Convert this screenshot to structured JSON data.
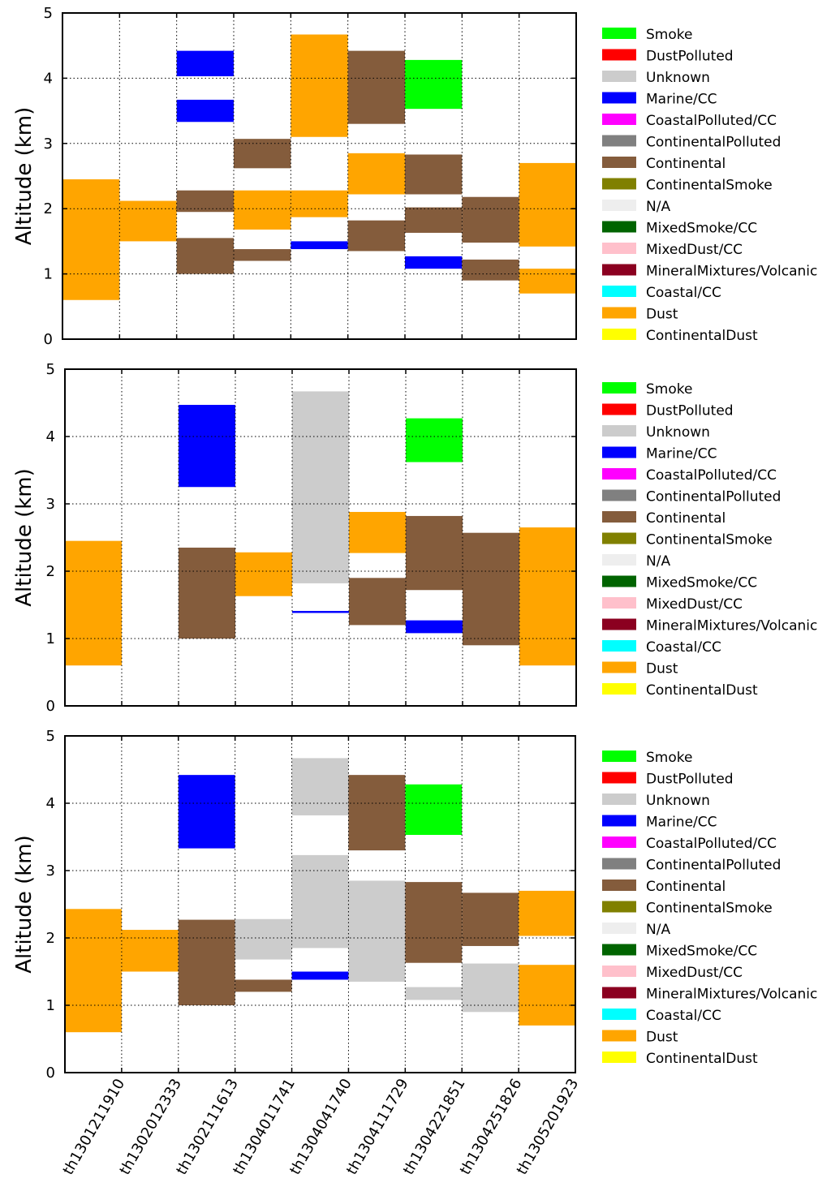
{
  "chart_data": [
    {
      "type": "bar",
      "panel": "top",
      "ylabel": "Altitude (km)",
      "ylim": [
        0,
        5
      ],
      "yticks": [
        "0",
        "1",
        "2",
        "3",
        "4",
        "5"
      ],
      "categories": [
        "th1301211910",
        "th1302012333",
        "th1302111613",
        "th1304011741",
        "th1304041740",
        "th1304111729",
        "th1304221851",
        "th1304251826",
        "th1305201923"
      ],
      "grid": true,
      "legend_position": "right",
      "layers": [
        {
          "category": "th1301211910",
          "type": "Dust",
          "bottom": 0.6,
          "top": 2.45
        },
        {
          "category": "th1302012333",
          "type": "Dust",
          "bottom": 1.5,
          "top": 2.12
        },
        {
          "category": "th1302111613",
          "type": "Continental",
          "bottom": 1.0,
          "top": 1.55
        },
        {
          "category": "th1302111613",
          "type": "Continental",
          "bottom": 1.95,
          "top": 2.28
        },
        {
          "category": "th1302111613",
          "type": "Marine/CC",
          "bottom": 3.33,
          "top": 3.67
        },
        {
          "category": "th1302111613",
          "type": "Marine/CC",
          "bottom": 4.03,
          "top": 4.42
        },
        {
          "category": "th1304011741",
          "type": "Continental",
          "bottom": 1.2,
          "top": 1.38
        },
        {
          "category": "th1304011741",
          "type": "Dust",
          "bottom": 1.68,
          "top": 2.28
        },
        {
          "category": "th1304011741",
          "type": "Continental",
          "bottom": 2.62,
          "top": 3.07
        },
        {
          "category": "th1304041740",
          "type": "Marine/CC",
          "bottom": 1.38,
          "top": 1.5
        },
        {
          "category": "th1304041740",
          "type": "Dust",
          "bottom": 1.87,
          "top": 2.28
        },
        {
          "category": "th1304041740",
          "type": "Dust",
          "bottom": 3.1,
          "top": 4.67
        },
        {
          "category": "th1304111729",
          "type": "Continental",
          "bottom": 1.35,
          "top": 1.82
        },
        {
          "category": "th1304111729",
          "type": "Dust",
          "bottom": 2.22,
          "top": 2.85
        },
        {
          "category": "th1304111729",
          "type": "Continental",
          "bottom": 3.3,
          "top": 4.42
        },
        {
          "category": "th1304221851",
          "type": "Marine/CC",
          "bottom": 1.08,
          "top": 1.27
        },
        {
          "category": "th1304221851",
          "type": "Continental",
          "bottom": 1.63,
          "top": 2.02
        },
        {
          "category": "th1304221851",
          "type": "Continental",
          "bottom": 2.22,
          "top": 2.83
        },
        {
          "category": "th1304221851",
          "type": "Smoke",
          "bottom": 3.53,
          "top": 4.28
        },
        {
          "category": "th1304251826",
          "type": "Continental",
          "bottom": 0.9,
          "top": 1.22
        },
        {
          "category": "th1304251826",
          "type": "Continental",
          "bottom": 1.48,
          "top": 2.18
        },
        {
          "category": "th1305201923",
          "type": "Dust",
          "bottom": 0.7,
          "top": 1.08
        },
        {
          "category": "th1305201923",
          "type": "Dust",
          "bottom": 1.42,
          "top": 2.7
        }
      ]
    },
    {
      "type": "bar",
      "panel": "middle",
      "ylabel": "Altitude (km)",
      "ylim": [
        0,
        5
      ],
      "yticks": [
        "0",
        "1",
        "2",
        "3",
        "4",
        "5"
      ],
      "categories": [
        "th1301211910",
        "th1302012333",
        "th1302111613",
        "th1304011741",
        "th1304041740",
        "th1304111729",
        "th1304221851",
        "th1304251826",
        "th1305201923"
      ],
      "grid": true,
      "legend_position": "right",
      "layers": [
        {
          "category": "th1301211910",
          "type": "Dust",
          "bottom": 0.6,
          "top": 2.45
        },
        {
          "category": "th1302111613",
          "type": "Continental",
          "bottom": 1.0,
          "top": 2.35
        },
        {
          "category": "th1302111613",
          "type": "Marine/CC",
          "bottom": 3.25,
          "top": 4.47
        },
        {
          "category": "th1304011741",
          "type": "Dust",
          "bottom": 1.63,
          "top": 2.28
        },
        {
          "category": "th1304041740",
          "type": "Marine/CC",
          "bottom": 1.38,
          "top": 1.41
        },
        {
          "category": "th1304041740",
          "type": "Unknown",
          "bottom": 1.82,
          "top": 4.67
        },
        {
          "category": "th1304111729",
          "type": "Continental",
          "bottom": 1.2,
          "top": 1.9
        },
        {
          "category": "th1304111729",
          "type": "Dust",
          "bottom": 2.27,
          "top": 2.88
        },
        {
          "category": "th1304221851",
          "type": "Marine/CC",
          "bottom": 1.08,
          "top": 1.27
        },
        {
          "category": "th1304221851",
          "type": "Continental",
          "bottom": 1.72,
          "top": 2.82
        },
        {
          "category": "th1304221851",
          "type": "Smoke",
          "bottom": 3.62,
          "top": 4.27
        },
        {
          "category": "th1304251826",
          "type": "Continental",
          "bottom": 0.9,
          "top": 2.57
        },
        {
          "category": "th1305201923",
          "type": "Dust",
          "bottom": 0.6,
          "top": 2.65
        }
      ]
    },
    {
      "type": "bar",
      "panel": "bottom",
      "ylabel": "Altitude (km)",
      "ylim": [
        0,
        5
      ],
      "yticks": [
        "0",
        "1",
        "2",
        "3",
        "4",
        "5"
      ],
      "categories": [
        "th1301211910",
        "th1302012333",
        "th1302111613",
        "th1304011741",
        "th1304041740",
        "th1304111729",
        "th1304221851",
        "th1304251826",
        "th1305201923"
      ],
      "grid": true,
      "legend_position": "right",
      "layers": [
        {
          "category": "th1301211910",
          "type": "Dust",
          "bottom": 0.6,
          "top": 2.43
        },
        {
          "category": "th1302012333",
          "type": "Dust",
          "bottom": 1.5,
          "top": 2.12
        },
        {
          "category": "th1302111613",
          "type": "Continental",
          "bottom": 1.0,
          "top": 2.27
        },
        {
          "category": "th1302111613",
          "type": "Marine/CC",
          "bottom": 3.33,
          "top": 4.42
        },
        {
          "category": "th1304011741",
          "type": "Continental",
          "bottom": 1.2,
          "top": 1.38
        },
        {
          "category": "th1304011741",
          "type": "Unknown",
          "bottom": 1.68,
          "top": 2.28
        },
        {
          "category": "th1304041740",
          "type": "Marine/CC",
          "bottom": 1.38,
          "top": 1.5
        },
        {
          "category": "th1304041740",
          "type": "Unknown",
          "bottom": 1.85,
          "top": 3.23
        },
        {
          "category": "th1304041740",
          "type": "Unknown",
          "bottom": 3.82,
          "top": 4.67
        },
        {
          "category": "th1304111729",
          "type": "Unknown",
          "bottom": 1.35,
          "top": 2.85
        },
        {
          "category": "th1304111729",
          "type": "Continental",
          "bottom": 3.3,
          "top": 4.42
        },
        {
          "category": "th1304221851",
          "type": "Unknown",
          "bottom": 1.08,
          "top": 1.27
        },
        {
          "category": "th1304221851",
          "type": "Continental",
          "bottom": 1.63,
          "top": 2.83
        },
        {
          "category": "th1304221851",
          "type": "Smoke",
          "bottom": 3.53,
          "top": 4.28
        },
        {
          "category": "th1304251826",
          "type": "Unknown",
          "bottom": 0.9,
          "top": 1.62
        },
        {
          "category": "th1304251826",
          "type": "Continental",
          "bottom": 1.88,
          "top": 2.67
        },
        {
          "category": "th1305201923",
          "type": "Dust",
          "bottom": 0.7,
          "top": 1.6
        },
        {
          "category": "th1305201923",
          "type": "Dust",
          "bottom": 2.03,
          "top": 2.7
        }
      ]
    }
  ],
  "legend": {
    "entries": [
      {
        "label": "Smoke",
        "color": "#00ff00"
      },
      {
        "label": "DustPolluted",
        "color": "#ff0000"
      },
      {
        "label": "Unknown",
        "color": "#cccccc"
      },
      {
        "label": "Marine/CC",
        "color": "#0000ff"
      },
      {
        "label": "CoastalPolluted/CC",
        "color": "#ff00ff"
      },
      {
        "label": "ContinentalPolluted",
        "color": "#808080"
      },
      {
        "label": "Continental",
        "color": "#845c3c"
      },
      {
        "label": "ContinentalSmoke",
        "color": "#808000"
      },
      {
        "label": "N/A",
        "color": "#eeeeee"
      },
      {
        "label": "MixedSmoke/CC",
        "color": "#006400"
      },
      {
        "label": "MixedDust/CC",
        "color": "#ffc0cb"
      },
      {
        "label": "MineralMixtures/Volcanic",
        "color": "#8b0020"
      },
      {
        "label": "Coastal/CC",
        "color": "#00ffff"
      },
      {
        "label": "Dust",
        "color": "#ffa500"
      },
      {
        "label": "ContinentalDust",
        "color": "#ffff00"
      }
    ]
  }
}
